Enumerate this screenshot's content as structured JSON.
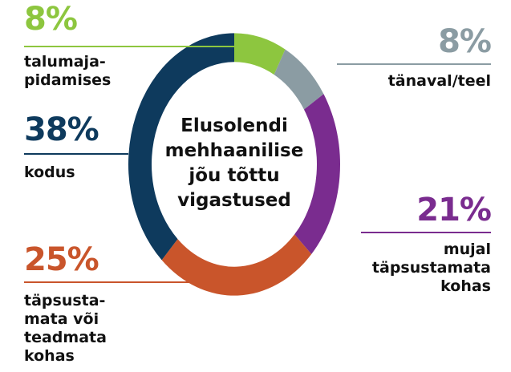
{
  "chart_data": {
    "type": "donut",
    "title": "Elusolendi\nmehhaanilise\njõu tõttu\nvigastused",
    "categories": [
      "talumaja-\npidamises",
      "tänaval/teel",
      "mujal\ntäpsustamata\nkohas",
      "täpsusta-\nmata või\nteadmata\nkohas",
      "kodus"
    ],
    "values": [
      8,
      8,
      21,
      25,
      38
    ],
    "value_labels": [
      "8%",
      "8%",
      "21%",
      "25%",
      "38%"
    ],
    "colors": [
      "#8dc63f",
      "#8b9ca3",
      "#7a2c8f",
      "#c9552b",
      "#0e3a5d"
    ]
  }
}
